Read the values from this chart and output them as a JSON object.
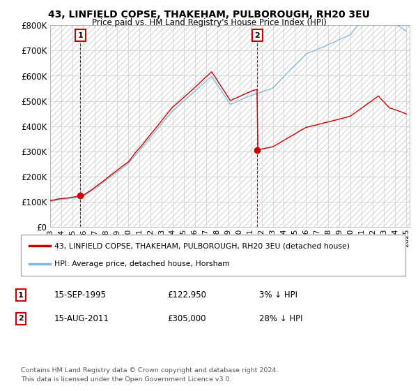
{
  "title": "43, LINFIELD COPSE, THAKEHAM, PULBOROUGH, RH20 3EU",
  "subtitle": "Price paid vs. HM Land Registry's House Price Index (HPI)",
  "ylim": [
    0,
    800000
  ],
  "yticks": [
    0,
    100000,
    200000,
    300000,
    400000,
    500000,
    600000,
    700000,
    800000
  ],
  "ytick_labels": [
    "£0",
    "£100K",
    "£200K",
    "£300K",
    "£400K",
    "£500K",
    "£600K",
    "£700K",
    "£800K"
  ],
  "hpi_color": "#7eb8d4",
  "price_color": "#cc0000",
  "sale1_year": 1995.71,
  "sale1_price": 122950,
  "sale2_year": 2011.62,
  "sale2_price": 305000,
  "legend_house_label": "43, LINFIELD COPSE, THAKEHAM, PULBOROUGH, RH20 3EU (detached house)",
  "legend_hpi_label": "HPI: Average price, detached house, Horsham",
  "note1_date": "15-SEP-1995",
  "note1_price": "£122,950",
  "note1_change": "3% ↓ HPI",
  "note2_date": "15-AUG-2011",
  "note2_price": "£305,000",
  "note2_change": "28% ↓ HPI",
  "footer": "Contains HM Land Registry data © Crown copyright and database right 2024.\nThis data is licensed under the Open Government Licence v3.0.",
  "background_color": "#ffffff",
  "grid_color": "#cccccc",
  "hatch_color": "#dddddd"
}
